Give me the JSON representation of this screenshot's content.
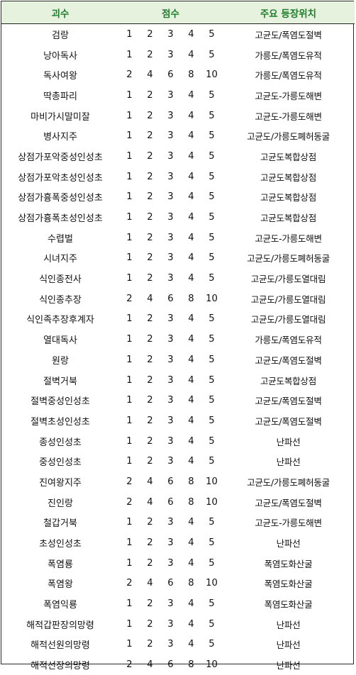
{
  "header": {
    "name": "괴수",
    "score": "점수",
    "location": "주요 등장위치"
  },
  "rows": [
    {
      "name": "검랑",
      "scores": [
        "1",
        "2",
        "3",
        "4",
        "5"
      ],
      "location": "고균도/폭염도절벽"
    },
    {
      "name": "낭아독사",
      "scores": [
        "1",
        "2",
        "3",
        "4",
        "5"
      ],
      "location": "가릉도/폭염도유적"
    },
    {
      "name": "독사여왕",
      "scores": [
        "2",
        "4",
        "6",
        "8",
        "10"
      ],
      "location": "가릉도/폭염도유적"
    },
    {
      "name": "딱총파리",
      "scores": [
        "1",
        "2",
        "3",
        "4",
        "5"
      ],
      "location": "고균도-가릉도해변"
    },
    {
      "name": "마비가시말미잘",
      "scores": [
        "1",
        "2",
        "3",
        "4",
        "5"
      ],
      "location": "고균도-가릉도해변"
    },
    {
      "name": "병사지주",
      "scores": [
        "1",
        "2",
        "3",
        "4",
        "5"
      ],
      "location": "고균도/가릉도폐허동굴"
    },
    {
      "name": "상점가포악중성인성초",
      "scores": [
        "1",
        "2",
        "3",
        "4",
        "5"
      ],
      "location": "고균도복합상점"
    },
    {
      "name": "상점가포악초성인성초",
      "scores": [
        "1",
        "2",
        "3",
        "4",
        "5"
      ],
      "location": "고균도복합상점"
    },
    {
      "name": "상점가흉폭중성인성초",
      "scores": [
        "1",
        "2",
        "3",
        "4",
        "5"
      ],
      "location": "고균도복합상점"
    },
    {
      "name": "상점가흉폭초성인성초",
      "scores": [
        "1",
        "2",
        "3",
        "4",
        "5"
      ],
      "location": "고균도복합상점"
    },
    {
      "name": "수렵벌",
      "scores": [
        "1",
        "2",
        "3",
        "4",
        "5"
      ],
      "location": "고균도-가릉도해변"
    },
    {
      "name": "시녀지주",
      "scores": [
        "1",
        "2",
        "3",
        "4",
        "5"
      ],
      "location": "고균도/가릉도폐허동굴"
    },
    {
      "name": "식인종전사",
      "scores": [
        "1",
        "2",
        "3",
        "4",
        "5"
      ],
      "location": "고균도/가릉도열대림"
    },
    {
      "name": "식인종추장",
      "scores": [
        "2",
        "4",
        "6",
        "8",
        "10"
      ],
      "location": "고균도/가릉도열대림"
    },
    {
      "name": "식인족추장후계자",
      "scores": [
        "1",
        "2",
        "3",
        "4",
        "5"
      ],
      "location": "고균도/가릉도열대림"
    },
    {
      "name": "열대독사",
      "scores": [
        "1",
        "2",
        "3",
        "4",
        "5"
      ],
      "location": "가릉도/폭염도유적"
    },
    {
      "name": "원랑",
      "scores": [
        "1",
        "2",
        "3",
        "4",
        "5"
      ],
      "location": "고균도/폭염도절벽"
    },
    {
      "name": "절벽거북",
      "scores": [
        "1",
        "2",
        "3",
        "4",
        "5"
      ],
      "location": "고균도복합상점"
    },
    {
      "name": "절벽중성인성초",
      "scores": [
        "1",
        "2",
        "3",
        "4",
        "5"
      ],
      "location": "고균도/폭염도절벽"
    },
    {
      "name": "절벽초성인성초",
      "scores": [
        "1",
        "2",
        "3",
        "4",
        "5"
      ],
      "location": "고균도/폭염도절벽"
    },
    {
      "name": "종성인성초",
      "scores": [
        "1",
        "2",
        "3",
        "4",
        "5"
      ],
      "location": "난파선"
    },
    {
      "name": "중성인성초",
      "scores": [
        "1",
        "2",
        "3",
        "4",
        "5"
      ],
      "location": "난파선"
    },
    {
      "name": "진여왕지주",
      "scores": [
        "2",
        "4",
        "6",
        "8",
        "10"
      ],
      "location": "고균도/가릉도폐허동굴"
    },
    {
      "name": "진인랑",
      "scores": [
        "2",
        "4",
        "6",
        "8",
        "10"
      ],
      "location": "고균도/폭염도절벽"
    },
    {
      "name": "철갑거북",
      "scores": [
        "1",
        "2",
        "3",
        "4",
        "5"
      ],
      "location": "고균도-가릉도해변"
    },
    {
      "name": "초성인성초",
      "scores": [
        "1",
        "2",
        "3",
        "4",
        "5"
      ],
      "location": "난파선"
    },
    {
      "name": "폭염룡",
      "scores": [
        "1",
        "2",
        "3",
        "4",
        "5"
      ],
      "location": "폭염도화산굴"
    },
    {
      "name": "폭염왕",
      "scores": [
        "2",
        "4",
        "6",
        "8",
        "10"
      ],
      "location": "폭염도화산굴"
    },
    {
      "name": "폭염익룡",
      "scores": [
        "1",
        "2",
        "3",
        "4",
        "5"
      ],
      "location": "폭염도화산굴"
    },
    {
      "name": "해적갑판장의망령",
      "scores": [
        "1",
        "2",
        "3",
        "4",
        "5"
      ],
      "location": "난파선"
    },
    {
      "name": "해적선원의망령",
      "scores": [
        "1",
        "2",
        "3",
        "4",
        "5"
      ],
      "location": "난파선"
    },
    {
      "name": "해적선장의망령",
      "scores": [
        "2",
        "4",
        "6",
        "8",
        "10"
      ],
      "location": "난파선"
    }
  ]
}
